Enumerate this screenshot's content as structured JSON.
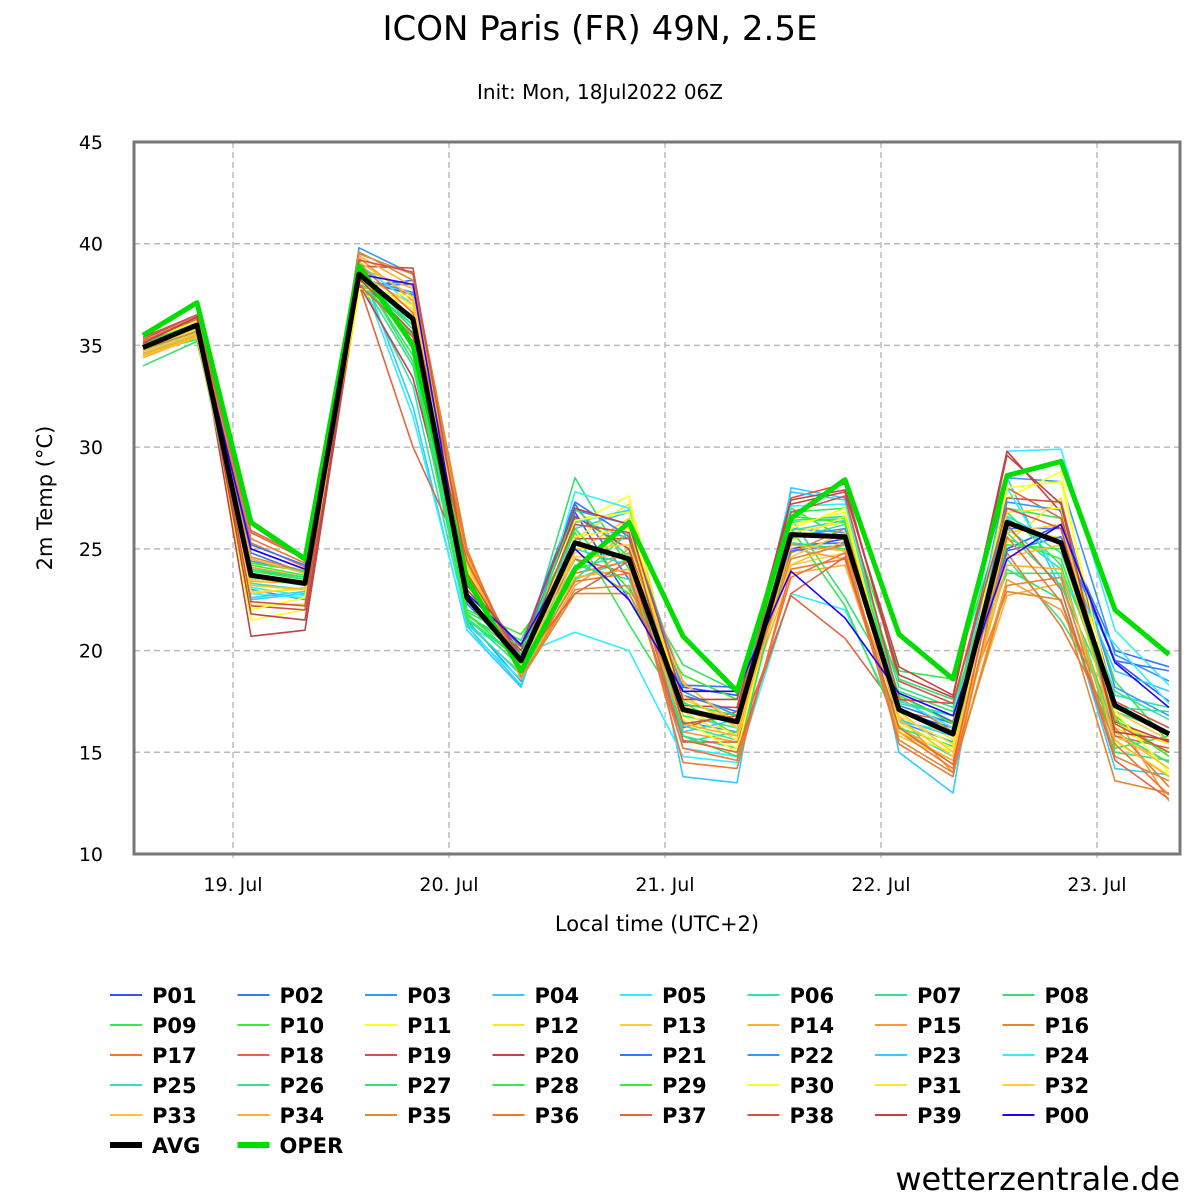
{
  "chart_data": {
    "type": "line",
    "title": "ICON Paris (FR) 49N, 2.5E",
    "subtitle": "Init: Mon, 18Jul2022 06Z",
    "xlabel": "Local time (UTC+2)",
    "ylabel": "2m Temp (°C)",
    "ylim": [
      10,
      45
    ],
    "yticks": [
      10,
      15,
      20,
      25,
      30,
      35,
      40,
      45
    ],
    "x_unit": "hours since 19 Jul 00:00 local",
    "xlim": [
      -11,
      105
    ],
    "xticks": [
      {
        "h": 0,
        "label": "19. Jul"
      },
      {
        "h": 24,
        "label": "20. Jul"
      },
      {
        "h": 48,
        "label": "21. Jul"
      },
      {
        "h": 72,
        "label": "22. Jul"
      },
      {
        "h": 96,
        "label": "23. Jul"
      }
    ],
    "grid": true,
    "legend_placement": "bottom",
    "x": [
      -10,
      -4,
      2,
      8,
      14,
      20,
      26,
      32,
      38,
      44,
      50,
      56,
      62,
      68,
      74,
      80,
      86,
      92,
      98,
      104
    ],
    "members": [
      {
        "name": "P01",
        "color": "#3355ff",
        "values": [
          35.0,
          36.1,
          25.0,
          24.0,
          38.2,
          37.5,
          22.5,
          19.8,
          26.8,
          22.5,
          18.2,
          17.8,
          25.0,
          25.5,
          17.8,
          16.5,
          25.0,
          26.2,
          19.5,
          17.5
        ]
      },
      {
        "name": "P02",
        "color": "#3377ff",
        "values": [
          34.8,
          35.9,
          24.8,
          23.8,
          38.0,
          38.0,
          22.3,
          19.6,
          27.2,
          23.5,
          17.8,
          17.0,
          25.2,
          25.3,
          17.0,
          16.2,
          26.0,
          26.0,
          20.0,
          19.2
        ]
      },
      {
        "name": "P03",
        "color": "#3399ff",
        "values": [
          35.2,
          36.2,
          23.0,
          22.5,
          39.8,
          38.5,
          21.5,
          18.5,
          26.5,
          25.5,
          16.5,
          16.0,
          26.0,
          25.8,
          16.5,
          15.5,
          28.5,
          28.3,
          19.8,
          18.5
        ]
      },
      {
        "name": "P04",
        "color": "#33ccff",
        "values": [
          34.5,
          35.6,
          22.5,
          22.8,
          39.0,
          32.0,
          21.0,
          18.2,
          26.0,
          26.8,
          13.8,
          13.5,
          28.0,
          27.5,
          15.0,
          13.0,
          28.5,
          23.0,
          14.2,
          13.9
        ]
      },
      {
        "name": "P05",
        "color": "#33eeff",
        "values": [
          35.1,
          35.4,
          22.8,
          22.6,
          38.7,
          31.5,
          21.2,
          19.8,
          20.9,
          20.0,
          14.8,
          14.5,
          22.8,
          22.0,
          16.5,
          16.0,
          29.8,
          29.9,
          21.0,
          18.3
        ]
      },
      {
        "name": "P06",
        "color": "#33e0b0",
        "values": [
          34.9,
          35.8,
          23.2,
          23.0,
          38.3,
          33.0,
          21.4,
          18.8,
          23.5,
          24.5,
          15.8,
          15.2,
          25.5,
          26.2,
          16.2,
          14.8,
          26.0,
          24.0,
          17.8,
          17.2
        ]
      },
      {
        "name": "P07",
        "color": "#33e090",
        "values": [
          34.7,
          35.7,
          23.5,
          23.4,
          38.4,
          34.0,
          21.6,
          19.2,
          24.0,
          24.8,
          15.5,
          16.0,
          26.3,
          26.5,
          17.5,
          16.8,
          24.5,
          21.5,
          17.0,
          16.0
        ]
      },
      {
        "name": "P08",
        "color": "#33e070",
        "values": [
          34.0,
          35.2,
          24.0,
          23.5,
          38.6,
          34.5,
          21.8,
          19.5,
          28.5,
          24.0,
          19.3,
          18.0,
          26.5,
          22.6,
          18.0,
          17.0,
          24.0,
          22.5,
          15.0,
          14.6
        ]
      },
      {
        "name": "P09",
        "color": "#33ea55",
        "values": [
          34.6,
          35.3,
          23.8,
          23.2,
          38.1,
          35.5,
          21.9,
          20.5,
          25.8,
          21.3,
          17.0,
          16.6,
          26.8,
          27.0,
          19.0,
          18.6,
          27.0,
          26.5,
          18.5,
          15.5
        ]
      },
      {
        "name": "P10",
        "color": "#33ee33",
        "values": [
          34.8,
          35.5,
          24.2,
          23.7,
          38.2,
          36.0,
          22.0,
          20.8,
          24.5,
          22.8,
          17.5,
          15.8,
          27.0,
          25.5,
          17.6,
          16.2,
          25.5,
          24.5,
          16.8,
          14.8
        ]
      },
      {
        "name": "P11",
        "color": "#ffff22",
        "values": [
          35.3,
          36.0,
          21.5,
          22.0,
          37.5,
          37.0,
          23.8,
          19.0,
          26.2,
          27.6,
          16.8,
          15.2,
          26.2,
          26.8,
          16.0,
          15.0,
          27.5,
          28.8,
          15.5,
          13.9
        ]
      },
      {
        "name": "P12",
        "color": "#ffe622",
        "values": [
          35.0,
          35.9,
          22.2,
          22.3,
          37.8,
          37.2,
          24.0,
          19.4,
          25.5,
          27.2,
          17.2,
          15.8,
          25.8,
          26.3,
          17.2,
          15.6,
          25.3,
          27.5,
          16.2,
          15.0
        ]
      },
      {
        "name": "P13",
        "color": "#ffcc33",
        "values": [
          34.6,
          35.6,
          22.8,
          23.1,
          38.0,
          36.5,
          24.3,
          19.3,
          24.8,
          26.5,
          17.6,
          16.5,
          24.2,
          24.8,
          15.8,
          14.6,
          26.2,
          25.5,
          17.0,
          15.6
        ]
      },
      {
        "name": "P14",
        "color": "#ffb033",
        "values": [
          34.4,
          35.4,
          23.4,
          23.3,
          38.8,
          37.8,
          24.5,
          18.9,
          24.0,
          25.8,
          18.5,
          16.2,
          23.8,
          24.2,
          16.3,
          14.4,
          22.7,
          23.3,
          15.8,
          14.5
        ]
      },
      {
        "name": "P15",
        "color": "#ff9933",
        "values": [
          34.5,
          35.5,
          24.1,
          23.6,
          39.3,
          37.2,
          24.6,
          18.7,
          23.2,
          25.0,
          16.0,
          15.5,
          25.0,
          24.5,
          16.8,
          14.0,
          23.5,
          22.0,
          16.8,
          12.6
        ]
      },
      {
        "name": "P16",
        "color": "#e08833",
        "values": [
          34.9,
          35.8,
          24.6,
          23.9,
          39.5,
          38.5,
          25.0,
          18.6,
          22.8,
          22.8,
          18.0,
          16.8,
          24.8,
          26.0,
          17.7,
          16.0,
          22.9,
          22.5,
          13.6,
          13.0
        ]
      },
      {
        "name": "P17",
        "color": "#ee7733",
        "values": [
          35.0,
          36.1,
          25.3,
          24.1,
          39.2,
          34.8,
          24.8,
          19.1,
          23.8,
          24.4,
          14.5,
          14.2,
          24.0,
          24.5,
          16.0,
          14.2,
          24.8,
          21.2,
          16.2,
          13.3
        ]
      },
      {
        "name": "P18",
        "color": "#e06644",
        "values": [
          35.2,
          36.4,
          25.8,
          24.5,
          38.0,
          30.0,
          24.2,
          19.6,
          24.5,
          23.8,
          15.5,
          15.5,
          22.7,
          20.6,
          17.0,
          16.5,
          28.0,
          26.5,
          15.8,
          15.2
        ]
      },
      {
        "name": "P19",
        "color": "#d05544",
        "values": [
          35.4,
          36.5,
          22.2,
          22.0,
          38.9,
          38.8,
          23.6,
          19.8,
          25.5,
          25.5,
          16.2,
          17.0,
          27.5,
          28.2,
          18.5,
          17.4,
          27.5,
          27.3,
          17.5,
          16.2
        ]
      },
      {
        "name": "P20",
        "color": "#c04444",
        "values": [
          35.1,
          36.3,
          20.7,
          21.0,
          38.0,
          33.4,
          23.0,
          20.0,
          26.6,
          25.0,
          17.3,
          17.2,
          27.2,
          27.8,
          19.2,
          17.8,
          29.8,
          26.8,
          16.5,
          15.5
        ]
      },
      {
        "name": "P21",
        "color": "#3377ff",
        "values": [
          34.9,
          36.0,
          25.2,
          24.2,
          37.9,
          38.2,
          22.8,
          20.2,
          27.3,
          25.6,
          18.3,
          18.2,
          24.9,
          25.2,
          17.3,
          16.4,
          24.9,
          25.6,
          19.5,
          19.0
        ]
      },
      {
        "name": "P22",
        "color": "#3399ff",
        "values": [
          35.0,
          36.0,
          24.4,
          23.9,
          38.3,
          37.6,
          22.6,
          19.8,
          26.9,
          26.2,
          18.0,
          16.8,
          25.6,
          26.0,
          16.4,
          15.2,
          27.3,
          26.9,
          18.2,
          16.8
        ]
      },
      {
        "name": "P23",
        "color": "#33ccff",
        "values": [
          34.8,
          35.6,
          22.6,
          22.9,
          38.5,
          35.8,
          21.2,
          18.3,
          26.3,
          26.9,
          16.0,
          16.6,
          27.8,
          27.4,
          16.6,
          15.8,
          26.6,
          25.2,
          19.0,
          18.0
        ]
      },
      {
        "name": "P24",
        "color": "#33eeff",
        "values": [
          34.7,
          35.5,
          23.1,
          22.7,
          39.0,
          37.0,
          21.0,
          18.6,
          27.8,
          27.0,
          15.2,
          14.8,
          27.1,
          27.2,
          17.6,
          16.2,
          28.0,
          23.5,
          20.3,
          17.4
        ]
      },
      {
        "name": "P25",
        "color": "#33e0b0",
        "values": [
          35.0,
          35.8,
          23.3,
          23.0,
          38.6,
          36.0,
          21.3,
          18.9,
          25.0,
          24.2,
          16.3,
          15.6,
          25.9,
          26.4,
          17.4,
          16.8,
          26.5,
          24.8,
          18.0,
          16.6
        ]
      },
      {
        "name": "P26",
        "color": "#33e090",
        "values": [
          34.8,
          35.6,
          23.6,
          23.2,
          38.2,
          35.2,
          21.5,
          19.6,
          24.2,
          23.5,
          16.8,
          16.2,
          26.4,
          26.6,
          18.2,
          17.2,
          25.8,
          23.2,
          17.2,
          17.0
        ]
      },
      {
        "name": "P27",
        "color": "#33e070",
        "values": [
          34.6,
          35.5,
          24.0,
          23.6,
          38.4,
          35.8,
          21.7,
          20.2,
          23.5,
          25.8,
          15.8,
          14.8,
          25.3,
          25.0,
          18.6,
          17.6,
          23.8,
          23.8,
          16.0,
          14.5
        ]
      },
      {
        "name": "P28",
        "color": "#33ea55",
        "values": [
          34.9,
          35.9,
          23.9,
          23.5,
          38.7,
          34.2,
          21.6,
          19.5,
          27.0,
          24.6,
          17.4,
          16.8,
          26.0,
          22.2,
          16.2,
          15.3,
          26.8,
          24.2,
          15.2,
          15.8
        ]
      },
      {
        "name": "P29",
        "color": "#33ee33",
        "values": [
          35.1,
          36.1,
          24.3,
          23.9,
          38.3,
          36.2,
          21.8,
          19.8,
          26.0,
          23.0,
          18.8,
          17.6,
          26.6,
          26.3,
          17.8,
          16.4,
          25.2,
          25.0,
          16.6,
          14.8
        ]
      },
      {
        "name": "P30",
        "color": "#ffff22",
        "values": [
          35.2,
          36.2,
          22.0,
          22.6,
          37.8,
          37.4,
          23.6,
          19.2,
          26.4,
          26.8,
          16.6,
          15.0,
          26.0,
          27.0,
          16.4,
          15.2,
          28.0,
          28.3,
          17.0,
          14.0
        ]
      },
      {
        "name": "P31",
        "color": "#ffe622",
        "values": [
          34.9,
          35.8,
          22.9,
          23.0,
          38.1,
          36.8,
          23.9,
          18.9,
          25.6,
          26.0,
          17.0,
          15.6,
          25.4,
          26.6,
          16.8,
          15.4,
          26.8,
          27.0,
          16.4,
          15.4
        ]
      },
      {
        "name": "P32",
        "color": "#ffcc33",
        "values": [
          34.7,
          35.6,
          23.5,
          23.4,
          38.5,
          37.0,
          24.2,
          19.0,
          25.0,
          25.2,
          17.8,
          16.2,
          24.6,
          25.8,
          17.0,
          15.0,
          25.8,
          26.2,
          17.2,
          15.8
        ]
      },
      {
        "name": "P33",
        "color": "#ffc033",
        "values": [
          34.5,
          35.4,
          23.2,
          23.0,
          39.1,
          37.4,
          24.5,
          18.8,
          24.6,
          24.7,
          18.4,
          16.4,
          24.2,
          25.4,
          16.6,
          14.8,
          24.6,
          25.2,
          16.0,
          14.2
        ]
      },
      {
        "name": "P34",
        "color": "#ffb033",
        "values": [
          34.6,
          35.5,
          24.5,
          23.8,
          39.4,
          37.9,
          24.7,
          18.6,
          23.6,
          24.0,
          16.4,
          15.8,
          25.2,
          24.9,
          16.0,
          14.6,
          24.2,
          24.0,
          15.6,
          13.8
        ]
      },
      {
        "name": "P35",
        "color": "#e08833",
        "values": [
          34.8,
          35.7,
          25.0,
          24.0,
          39.6,
          38.2,
          24.9,
          18.7,
          23.0,
          23.2,
          17.2,
          16.6,
          24.5,
          25.2,
          15.6,
          14.0,
          23.2,
          23.6,
          14.8,
          13.6
        ]
      },
      {
        "name": "P36",
        "color": "#ee7733",
        "values": [
          35.0,
          36.0,
          25.5,
          24.3,
          39.0,
          36.6,
          24.8,
          19.0,
          23.4,
          23.8,
          15.2,
          14.6,
          23.6,
          24.8,
          15.4,
          13.8,
          25.6,
          22.4,
          15.4,
          12.9
        ]
      },
      {
        "name": "P37",
        "color": "#e06644",
        "values": [
          35.2,
          36.3,
          25.9,
          24.6,
          38.0,
          35.4,
          24.4,
          19.4,
          22.8,
          24.4,
          15.6,
          15.0,
          22.8,
          24.6,
          16.2,
          14.4,
          26.2,
          23.0,
          14.6,
          12.7
        ]
      },
      {
        "name": "P38",
        "color": "#d05544",
        "values": [
          35.3,
          36.5,
          22.4,
          22.2,
          39.2,
          38.6,
          23.8,
          19.6,
          26.2,
          25.8,
          16.4,
          16.8,
          26.8,
          27.6,
          17.6,
          17.4,
          27.0,
          26.0,
          16.4,
          15.0
        ]
      },
      {
        "name": "P39",
        "color": "#c04444",
        "values": [
          35.1,
          36.4,
          21.8,
          21.5,
          38.3,
          35.6,
          23.2,
          20.2,
          27.0,
          26.2,
          17.6,
          17.6,
          27.4,
          27.9,
          18.8,
          17.7,
          29.6,
          27.2,
          16.0,
          15.6
        ]
      },
      {
        "name": "P00",
        "color": "#2200ff",
        "values": [
          34.9,
          36.0,
          25.0,
          24.0,
          38.5,
          38.0,
          22.8,
          20.3,
          25.0,
          22.5,
          18.0,
          18.0,
          23.9,
          21.6,
          17.9,
          16.8,
          24.5,
          26.2,
          19.4,
          17.2
        ]
      }
    ],
    "avg": {
      "name": "AVG",
      "color": "#000000",
      "values": [
        34.9,
        36.0,
        23.7,
        23.3,
        38.5,
        36.3,
        22.6,
        19.5,
        25.3,
        24.5,
        17.1,
        16.5,
        25.7,
        25.6,
        17.1,
        15.9,
        26.3,
        25.3,
        17.3,
        15.9
      ]
    },
    "oper": {
      "name": "OPER",
      "color": "#00dd00",
      "values": [
        35.5,
        37.1,
        26.3,
        24.5,
        38.9,
        35.0,
        23.5,
        19.0,
        24.0,
        26.3,
        20.7,
        18.0,
        26.5,
        28.4,
        20.8,
        18.6,
        28.6,
        29.3,
        22.0,
        19.8
      ]
    }
  },
  "watermark": "wetterzentrale.de"
}
